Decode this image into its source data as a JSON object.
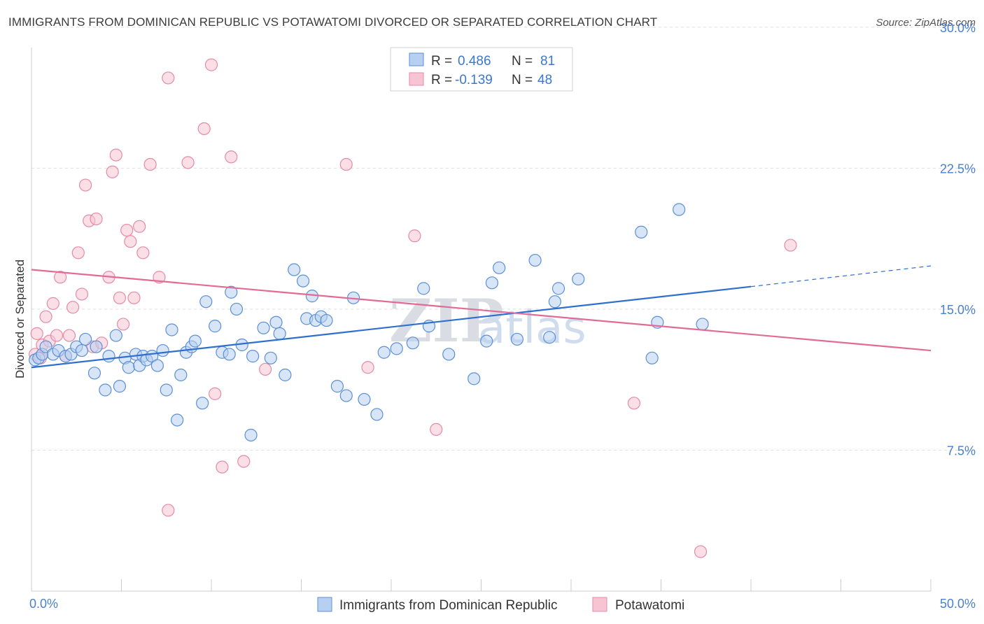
{
  "title": "IMMIGRANTS FROM DOMINICAN REPUBLIC VS POTAWATOMI DIVORCED OR SEPARATED CORRELATION CHART",
  "source": "Source: ZipAtlas.com",
  "watermark": {
    "zip": "ZIP",
    "atlas": "atlas"
  },
  "colors": {
    "blue_fill": "#b7d0f1",
    "blue_stroke": "#5b8fd6",
    "blue_line": "#2f6fd0",
    "pink_fill": "#f7c4d4",
    "pink_stroke": "#e58aa8",
    "pink_line": "#e26b96",
    "grid": "#dddddd",
    "tick_text": "#4a7fcf"
  },
  "legend": {
    "rows": [
      {
        "r_label": "R =",
        "r_value": "0.486",
        "n_label": "N =",
        "n_value": "81"
      },
      {
        "r_label": "R =",
        "r_value": "-0.139",
        "n_label": "N =",
        "n_value": "48"
      }
    ]
  },
  "chart_data": {
    "type": "scatter",
    "title": "IMMIGRANTS FROM DOMINICAN REPUBLIC VS POTAWATOMI DIVORCED OR SEPARATED CORRELATION CHART",
    "xlabel": "",
    "ylabel": "Divorced or Separated",
    "xlim": [
      0,
      50
    ],
    "ylim": [
      0,
      31
    ],
    "x_tick_labels": [
      "0.0%",
      "50.0%"
    ],
    "y_ticks": [
      7.5,
      15.0,
      22.5,
      30.0
    ],
    "y_tick_labels": [
      "7.5%",
      "15.0%",
      "22.5%",
      "30.0%"
    ],
    "legend_position": "top-center",
    "series": [
      {
        "name": "Immigrants from Dominican Republic",
        "color": "#b7d0f1",
        "R": 0.486,
        "N": 81,
        "trend": {
          "x0": 0,
          "y0": 11.9,
          "x1": 40.0,
          "y1": 16.2,
          "dash_x1": 50.0,
          "dash_y1": 17.3
        },
        "points": [
          [
            0.2,
            12.3
          ],
          [
            0.4,
            12.4
          ],
          [
            0.6,
            12.6
          ],
          [
            0.8,
            13.0
          ],
          [
            1.2,
            12.6
          ],
          [
            1.5,
            12.8
          ],
          [
            1.9,
            12.5
          ],
          [
            2.2,
            12.6
          ],
          [
            2.5,
            13.0
          ],
          [
            2.8,
            12.8
          ],
          [
            3.0,
            13.4
          ],
          [
            3.6,
            13.0
          ],
          [
            3.5,
            11.6
          ],
          [
            4.1,
            10.7
          ],
          [
            4.3,
            12.5
          ],
          [
            4.7,
            13.6
          ],
          [
            4.9,
            10.9
          ],
          [
            5.2,
            12.4
          ],
          [
            5.4,
            11.9
          ],
          [
            5.8,
            12.6
          ],
          [
            6.0,
            12.0
          ],
          [
            6.2,
            12.5
          ],
          [
            6.4,
            12.3
          ],
          [
            6.7,
            12.5
          ],
          [
            7.0,
            12.0
          ],
          [
            7.3,
            12.8
          ],
          [
            7.5,
            10.7
          ],
          [
            7.8,
            13.9
          ],
          [
            8.1,
            9.1
          ],
          [
            8.3,
            11.5
          ],
          [
            8.6,
            12.7
          ],
          [
            8.9,
            13.0
          ],
          [
            9.1,
            13.3
          ],
          [
            9.5,
            10.0
          ],
          [
            9.7,
            15.4
          ],
          [
            10.2,
            14.1
          ],
          [
            10.6,
            12.7
          ],
          [
            11.0,
            12.6
          ],
          [
            11.1,
            15.9
          ],
          [
            11.4,
            15.0
          ],
          [
            11.7,
            13.1
          ],
          [
            12.3,
            12.5
          ],
          [
            12.2,
            8.3
          ],
          [
            12.9,
            14.0
          ],
          [
            13.3,
            12.4
          ],
          [
            13.6,
            14.3
          ],
          [
            13.8,
            13.7
          ],
          [
            14.1,
            11.5
          ],
          [
            14.6,
            17.1
          ],
          [
            15.1,
            16.5
          ],
          [
            15.3,
            14.5
          ],
          [
            15.6,
            15.7
          ],
          [
            15.8,
            14.4
          ],
          [
            16.1,
            14.6
          ],
          [
            16.4,
            14.4
          ],
          [
            17.0,
            10.9
          ],
          [
            17.5,
            10.4
          ],
          [
            17.9,
            15.6
          ],
          [
            18.5,
            10.2
          ],
          [
            19.2,
            9.4
          ],
          [
            19.6,
            12.7
          ],
          [
            20.3,
            12.9
          ],
          [
            21.2,
            13.2
          ],
          [
            21.8,
            16.1
          ],
          [
            22.1,
            14.1
          ],
          [
            23.2,
            12.6
          ],
          [
            24.6,
            11.3
          ],
          [
            25.3,
            13.3
          ],
          [
            25.6,
            16.4
          ],
          [
            26.0,
            17.2
          ],
          [
            27.0,
            13.4
          ],
          [
            28.0,
            17.6
          ],
          [
            28.8,
            13.5
          ],
          [
            29.1,
            15.4
          ],
          [
            29.3,
            16.1
          ],
          [
            30.4,
            16.6
          ],
          [
            33.9,
            19.1
          ],
          [
            34.5,
            12.4
          ],
          [
            34.8,
            14.3
          ],
          [
            36.0,
            20.3
          ],
          [
            37.3,
            14.2
          ]
        ]
      },
      {
        "name": "Potawatomi",
        "color": "#f7c4d4",
        "R": -0.139,
        "N": 48,
        "trend": {
          "x0": 0,
          "y0": 17.1,
          "x1": 50.0,
          "y1": 12.8
        },
        "points": [
          [
            0.3,
            13.7
          ],
          [
            0.6,
            13.1
          ],
          [
            0.8,
            14.6
          ],
          [
            1.0,
            13.3
          ],
          [
            1.2,
            15.3
          ],
          [
            1.4,
            13.6
          ],
          [
            1.6,
            16.7
          ],
          [
            1.9,
            12.5
          ],
          [
            2.1,
            13.6
          ],
          [
            2.3,
            15.1
          ],
          [
            2.6,
            18.0
          ],
          [
            2.8,
            15.8
          ],
          [
            3.0,
            21.6
          ],
          [
            3.2,
            19.7
          ],
          [
            3.4,
            13.0
          ],
          [
            3.6,
            19.8
          ],
          [
            3.9,
            13.2
          ],
          [
            4.3,
            16.7
          ],
          [
            4.5,
            22.3
          ],
          [
            4.7,
            23.2
          ],
          [
            4.9,
            15.6
          ],
          [
            5.1,
            14.2
          ],
          [
            5.3,
            19.2
          ],
          [
            5.5,
            18.6
          ],
          [
            5.7,
            15.6
          ],
          [
            6.0,
            19.4
          ],
          [
            6.2,
            18.0
          ],
          [
            6.6,
            22.7
          ],
          [
            7.1,
            16.7
          ],
          [
            7.6,
            27.3
          ],
          [
            7.6,
            4.3
          ],
          [
            8.7,
            22.8
          ],
          [
            9.6,
            24.6
          ],
          [
            10.0,
            28.0
          ],
          [
            10.2,
            10.5
          ],
          [
            10.6,
            6.6
          ],
          [
            11.1,
            23.1
          ],
          [
            11.8,
            6.9
          ],
          [
            13.0,
            11.8
          ],
          [
            17.5,
            22.7
          ],
          [
            18.7,
            11.9
          ],
          [
            21.3,
            18.9
          ],
          [
            22.5,
            8.6
          ],
          [
            33.5,
            10.0
          ],
          [
            37.2,
            2.1
          ],
          [
            42.2,
            18.4
          ],
          [
            0.2,
            12.6
          ],
          [
            0.5,
            12.4
          ]
        ]
      }
    ]
  },
  "bottom_legend": {
    "items": [
      {
        "label": "Immigrants from Dominican Republic"
      },
      {
        "label": "Potawatomi"
      }
    ]
  }
}
